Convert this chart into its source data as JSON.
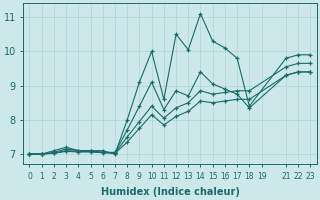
{
  "xlabel": "Humidex (Indice chaleur)",
  "bg_color": "#cce8e8",
  "line_color": "#1a6b6b",
  "grid_color": "#b0d4d4",
  "xlim": [
    -0.5,
    23.5
  ],
  "ylim": [
    6.7,
    11.4
  ],
  "xticks": [
    0,
    1,
    2,
    3,
    4,
    5,
    6,
    7,
    8,
    9,
    10,
    11,
    12,
    13,
    14,
    15,
    16,
    17,
    18,
    19,
    21,
    22,
    23
  ],
  "yticks": [
    7,
    8,
    9,
    10,
    11
  ],
  "series": [
    {
      "x": [
        0,
        1,
        2,
        3,
        4,
        5,
        6,
        7,
        8,
        9,
        10,
        11,
        12,
        13,
        14,
        15,
        16,
        17,
        18,
        21,
        22,
        23
      ],
      "y": [
        7.0,
        7.0,
        7.1,
        7.2,
        7.1,
        7.1,
        7.1,
        7.0,
        8.0,
        9.1,
        10.0,
        8.6,
        10.5,
        10.05,
        11.1,
        10.3,
        10.1,
        9.8,
        8.4,
        9.8,
        9.9,
        9.9
      ]
    },
    {
      "x": [
        0,
        1,
        2,
        3,
        4,
        5,
        6,
        7,
        8,
        9,
        10,
        11,
        12,
        13,
        14,
        15,
        16,
        17,
        18,
        21,
        22,
        23
      ],
      "y": [
        7.0,
        7.0,
        7.05,
        7.15,
        7.1,
        7.1,
        7.05,
        7.05,
        7.7,
        8.4,
        9.1,
        8.3,
        8.85,
        8.7,
        9.4,
        9.05,
        8.9,
        8.75,
        8.35,
        9.3,
        9.4,
        9.4
      ]
    },
    {
      "x": [
        0,
        1,
        2,
        3,
        4,
        5,
        6,
        7,
        8,
        9,
        10,
        11,
        12,
        13,
        14,
        15,
        16,
        17,
        18,
        21,
        22,
        23
      ],
      "y": [
        7.0,
        7.0,
        7.03,
        7.1,
        7.08,
        7.08,
        7.05,
        7.03,
        7.5,
        7.95,
        8.4,
        8.05,
        8.35,
        8.5,
        8.85,
        8.75,
        8.8,
        8.85,
        8.85,
        9.55,
        9.65,
        9.65
      ]
    },
    {
      "x": [
        0,
        1,
        2,
        3,
        4,
        5,
        6,
        7,
        8,
        9,
        10,
        11,
        12,
        13,
        14,
        15,
        16,
        17,
        18,
        21,
        22,
        23
      ],
      "y": [
        7.0,
        7.0,
        7.02,
        7.08,
        7.06,
        7.06,
        7.04,
        7.02,
        7.35,
        7.75,
        8.15,
        7.85,
        8.1,
        8.25,
        8.55,
        8.5,
        8.55,
        8.6,
        8.6,
        9.3,
        9.4,
        9.4
      ]
    }
  ]
}
